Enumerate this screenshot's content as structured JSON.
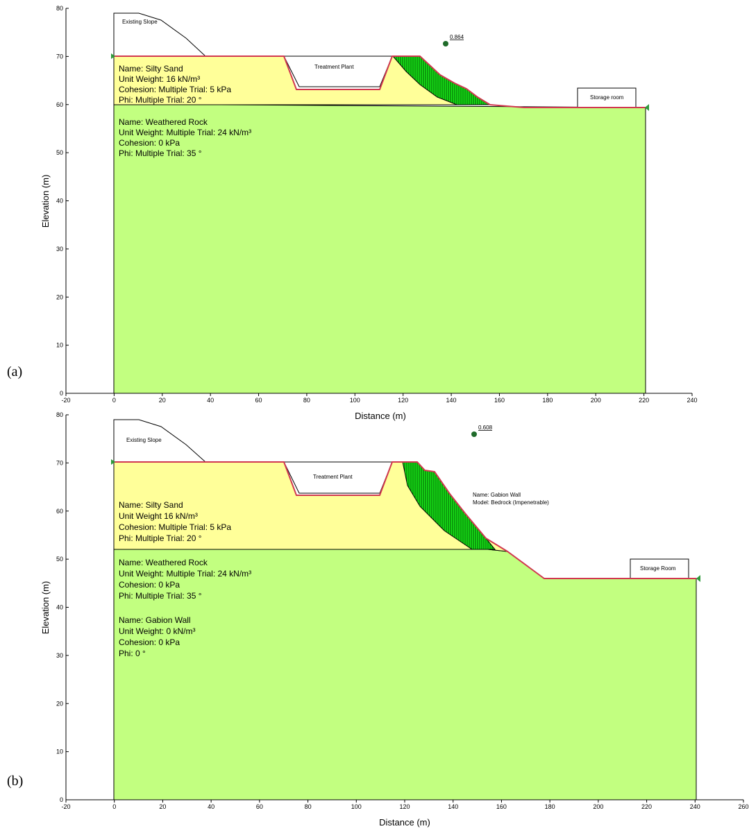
{
  "colors": {
    "silty_sand": "#ffff99",
    "weathered_rock": "#c2ff80",
    "slip_mass": "#19e619",
    "slip_hatch": "#005500",
    "surface_line": "#d1374f",
    "outline": "#000000",
    "fos_marker": "#1f6b2a",
    "boundary_marker": "#2d9a3a"
  },
  "panels": [
    {
      "tag": "(a)",
      "xlabel": "Distance (m)",
      "ylabel": "Elevation (m)",
      "x_ticks": [
        "-20",
        "0",
        "20",
        "40",
        "60",
        "80",
        "100",
        "120",
        "140",
        "160",
        "180",
        "200",
        "220",
        "240"
      ],
      "y_ticks": [
        "0",
        "10",
        "20",
        "30",
        "40",
        "50",
        "60",
        "70",
        "80"
      ],
      "xlim": [
        -20,
        240
      ],
      "ylim": [
        0,
        80
      ],
      "fos": "0.864",
      "labels": {
        "existing_slope": "Existing Slope",
        "treatment_plant": "Treatment Plant",
        "storage": "Storage room"
      },
      "material_1": [
        "Name: Silty Sand",
        "Unit Weight: 16 kN/m³",
        "Cohesion: Multiple Trial: 5 kPa",
        "Phi: Multiple Trial: 20 °"
      ],
      "material_2": [
        "Name: Weathered Rock",
        "Unit Weight: Multiple Trial: 24 kN/m³",
        "Cohesion: 0 kPa",
        "Phi: Multiple Trial: 35 °"
      ],
      "gabion_note": [],
      "material_3": []
    },
    {
      "tag": "(b)",
      "xlabel": "Distance (m)",
      "ylabel": "Elevation (m)",
      "x_ticks": [
        "-20",
        "0",
        "20",
        "40",
        "60",
        "80",
        "100",
        "120",
        "140",
        "160",
        "180",
        "200",
        "220",
        "240",
        "260"
      ],
      "y_ticks": [
        "0",
        "10",
        "20",
        "30",
        "40",
        "50",
        "60",
        "70",
        "80"
      ],
      "xlim": [
        -20,
        260
      ],
      "ylim": [
        0,
        80
      ],
      "fos": "0.608",
      "labels": {
        "existing_slope": "Existing Slope",
        "treatment_plant": "Treatment Plant",
        "storage": "Storage Room"
      },
      "material_1": [
        "Name: Silty Sand",
        "Unit Weight 16 kN/m³",
        "Cohesion: Multiple Trial: 5 kPa",
        "Phi: Multiple Trial: 20 °"
      ],
      "material_2": [
        "Name: Weathered Rock",
        "Unit Weight: Multiple Trial: 24 kN/m³",
        "Cohesion: 0 kPa",
        "Phi: Multiple Trial: 35 °"
      ],
      "gabion_note": [
        "Name: Gabion Wall",
        "Model: Bedrock (Impenetrable)"
      ],
      "material_3": [
        "Name: Gabion Wall",
        "Unit Weight: 0 kN/m³",
        "Cohesion: 0 kPa",
        "Phi: 0 °"
      ]
    }
  ]
}
